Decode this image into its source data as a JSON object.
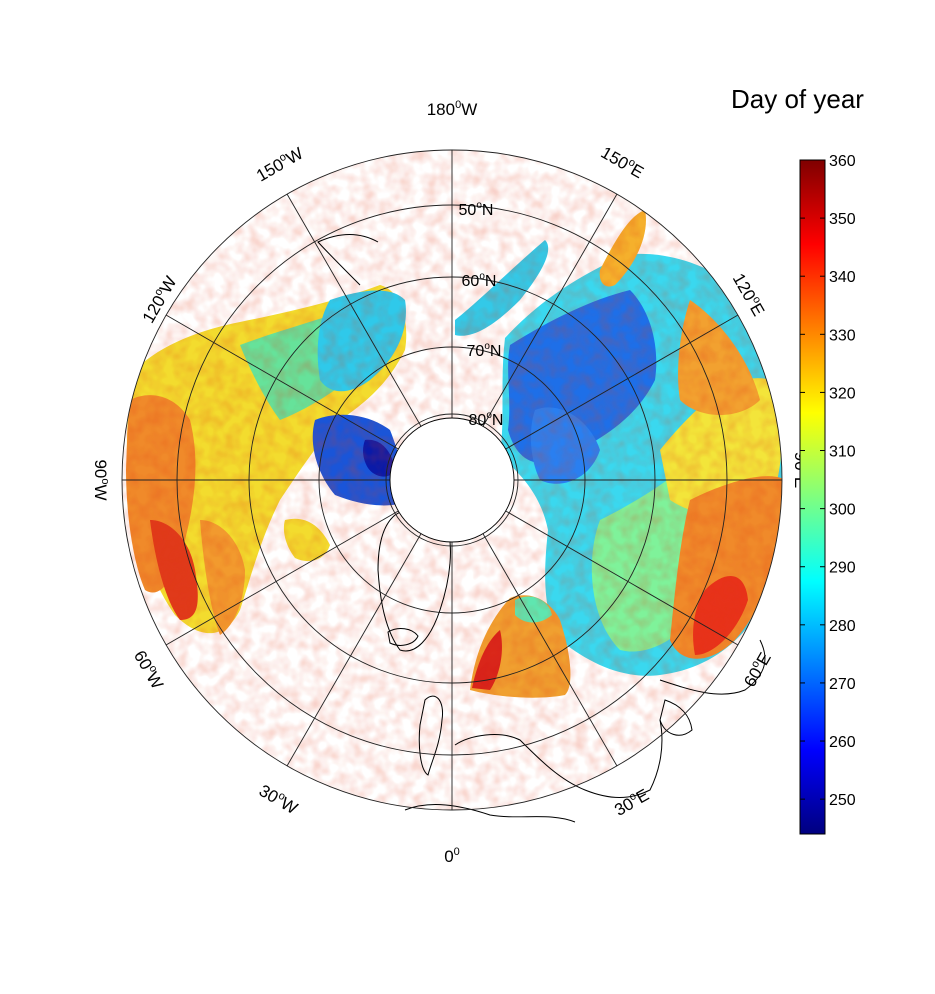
{
  "colorbar": {
    "title": "Day of year",
    "min": 244,
    "max": 360,
    "ticks": [
      "250",
      "260",
      "270",
      "280",
      "290",
      "300",
      "310",
      "320",
      "330",
      "340",
      "350",
      "360"
    ],
    "colors": [
      "#00007f",
      "#0000ff",
      "#007fff",
      "#00ffff",
      "#7fff7f",
      "#ffff00",
      "#ff7f00",
      "#ff0000",
      "#7f0000"
    ]
  },
  "map": {
    "projection": "north polar stereographic",
    "meridian_labels": {
      "m180": {
        "base": "180",
        "sup": "0",
        "hemi": "W"
      },
      "m150w": {
        "base": "150",
        "sup": "o",
        "hemi": "W"
      },
      "m120w": {
        "base": "120",
        "sup": "o",
        "hemi": "W"
      },
      "m90w": {
        "base": "90",
        "sup": "o",
        "hemi": "W"
      },
      "m60w": {
        "base": "60",
        "sup": "o",
        "hemi": "W"
      },
      "m30w": {
        "base": "30",
        "sup": "o",
        "hemi": "W"
      },
      "m0": {
        "base": "0",
        "sup": "0",
        "hemi": ""
      },
      "m30e": {
        "base": "30",
        "sup": "o",
        "hemi": "E"
      },
      "m60e": {
        "base": "60",
        "sup": "o",
        "hemi": "E"
      },
      "m90e": {
        "base": "90",
        "sup": "o",
        "hemi": "E"
      },
      "m120e": {
        "base": "120",
        "sup": "o",
        "hemi": "E"
      },
      "m150e": {
        "base": "150",
        "sup": "o",
        "hemi": "E"
      }
    },
    "parallel_labels": {
      "p50": {
        "base": "50",
        "sup": "o",
        "hemi": "N"
      },
      "p60": {
        "base": "60",
        "sup": "o",
        "hemi": "N"
      },
      "p70": {
        "base": "70",
        "sup": "o",
        "hemi": "N"
      },
      "p80": {
        "base": "80",
        "sup": "o",
        "hemi": "N"
      }
    }
  }
}
